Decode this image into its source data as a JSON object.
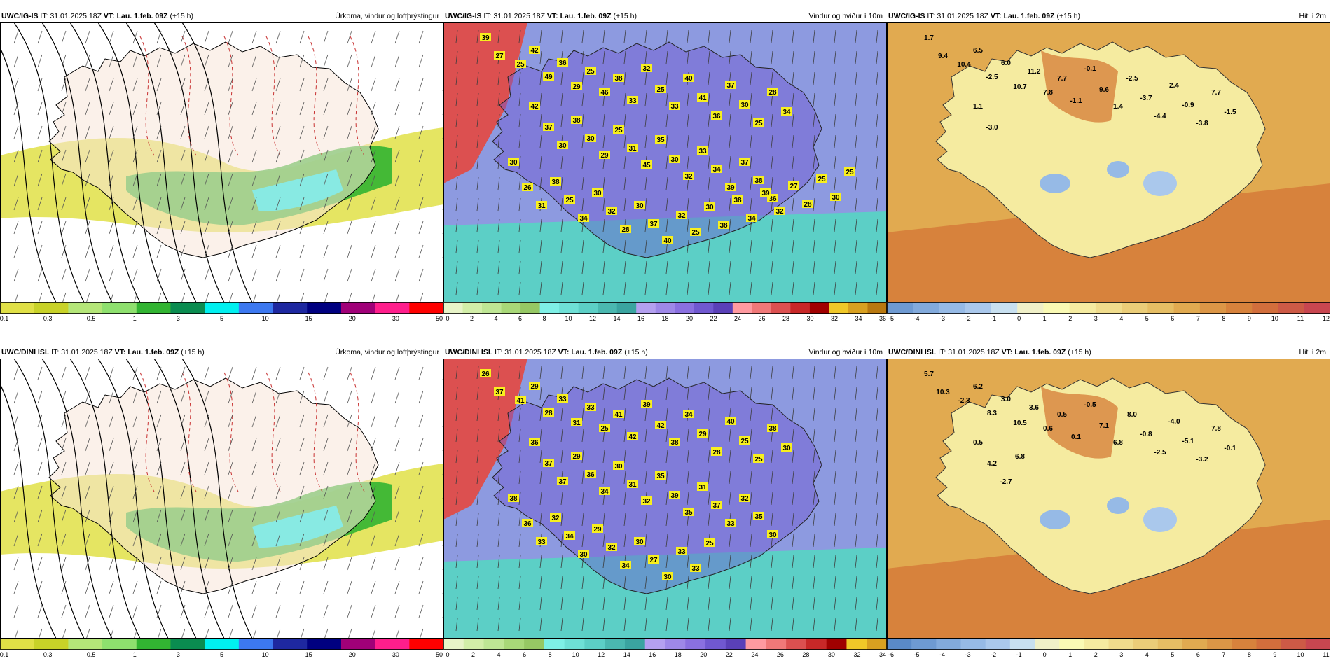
{
  "panels": [
    {
      "model": "UWC/IG-IS",
      "it_label": "IT:",
      "it_value": "31.01.2025 18Z",
      "vt_label": "VT:",
      "vt_value": "Lau. 1.feb. 09Z",
      "lead": "(+15 h)",
      "title": "Úrkoma, vindur og loftþrýstingur",
      "kind": "precip",
      "ticks": [
        "0.1",
        "0.3",
        "0.5",
        "1",
        "3",
        "5",
        "10",
        "15",
        "20",
        "30",
        "50"
      ],
      "scale_colors": [
        "#e0e046",
        "#c8d228",
        "#b4e678",
        "#8ee06e",
        "#32b432",
        "#0a8c50",
        "#00f0f0",
        "#3c78f0",
        "#1e28a0",
        "#000080",
        "#a00078",
        "#ff1e8c",
        "#ff0000"
      ],
      "values": []
    },
    {
      "model": "UWC/IG-IS",
      "it_label": "IT:",
      "it_value": "31.01.2025 18Z",
      "vt_label": "VT:",
      "vt_value": "Lau. 1.feb. 09Z",
      "lead": "(+15 h)",
      "title": "Vindur og hviður í 10m",
      "kind": "wind",
      "ticks": [
        "0",
        "2",
        "4",
        "6",
        "8",
        "10",
        "12",
        "14",
        "16",
        "18",
        "20",
        "22",
        "24",
        "26",
        "28",
        "30",
        "32",
        "34",
        "36"
      ],
      "scale_colors": [
        "#e8f4c8",
        "#d2eea8",
        "#bee694",
        "#a8d878",
        "#96c864",
        "#7ef0e6",
        "#6ee0d6",
        "#5ccfc6",
        "#4ab8b0",
        "#3aa4a0",
        "#b4a0f0",
        "#9e88e8",
        "#8a70e0",
        "#7058d0",
        "#5a40b8",
        "#ff9aa0",
        "#f07878",
        "#dc5050",
        "#c82828",
        "#a00000",
        "#f0c828",
        "#d8a020",
        "#b87810"
      ],
      "values": [
        "39",
        "27",
        "25",
        "42",
        "49",
        "36",
        "29",
        "25",
        "46",
        "38",
        "33",
        "32",
        "25",
        "33",
        "40",
        "41",
        "36",
        "37",
        "30",
        "25",
        "28",
        "34",
        "42",
        "37",
        "30",
        "38",
        "30",
        "29",
        "25",
        "31",
        "45",
        "35",
        "30",
        "32",
        "33",
        "34",
        "39",
        "37",
        "38",
        "36",
        "30",
        "26",
        "31",
        "38",
        "25",
        "34",
        "30",
        "32",
        "28",
        "30",
        "37",
        "40",
        "32",
        "25",
        "30",
        "38",
        "38",
        "34",
        "39",
        "32",
        "27",
        "28",
        "25",
        "30",
        "25"
      ]
    },
    {
      "model": "UWC/IG-IS",
      "it_label": "IT:",
      "it_value": "31.01.2025 18Z",
      "vt_label": "VT:",
      "vt_value": "Lau. 1.feb. 09Z",
      "lead": "(+15 h)",
      "title": "Hiti í 2m",
      "kind": "temp",
      "ticks": [
        "-5",
        "-4",
        "-3",
        "-2",
        "-1",
        "0",
        "1",
        "2",
        "3",
        "4",
        "5",
        "6",
        "7",
        "8",
        "9",
        "10",
        "11",
        "12"
      ],
      "scale_colors": [
        "#6e9ad2",
        "#82aadc",
        "#96bae6",
        "#aac8ec",
        "#c8e0f0",
        "#f0f0c8",
        "#fafab4",
        "#f5eba0",
        "#f0dc8c",
        "#ebcd78",
        "#e6be64",
        "#e1aa50",
        "#dc9646",
        "#d7823c",
        "#d26e3c",
        "#cd5a46",
        "#c84650"
      ],
      "values": [
        "1.7",
        "9.4",
        "10.4",
        "6.5",
        "-2.5",
        "6.0",
        "10.7",
        "11.2",
        "7.8",
        "7.7",
        "-1.1",
        "-0.1",
        "9.6",
        "1.4",
        "-2.5",
        "-3.7",
        "-4.4",
        "2.4",
        "-0.9",
        "-3.8",
        "7.7",
        "-1.5",
        "1.1",
        "-3.0"
      ]
    },
    {
      "model": "UWC/DINI ISL",
      "it_label": "IT:",
      "it_value": "31.01.2025 18Z",
      "vt_label": "VT:",
      "vt_value": "Lau. 1.feb. 09Z",
      "lead": "(+15 h)",
      "title": "Úrkoma, vindur og loftþrýstingur",
      "kind": "precip",
      "ticks": [
        "0.1",
        "0.3",
        "0.5",
        "1",
        "3",
        "5",
        "10",
        "15",
        "20",
        "30",
        "50"
      ],
      "scale_colors": [
        "#e0e046",
        "#c8d228",
        "#b4e678",
        "#8ee06e",
        "#32b432",
        "#0a8c50",
        "#00f0f0",
        "#3c78f0",
        "#1e28a0",
        "#000080",
        "#a00078",
        "#ff1e8c",
        "#ff0000"
      ],
      "values": []
    },
    {
      "model": "UWC/DINI ISL",
      "it_label": "IT:",
      "it_value": "31.01.2025 18Z",
      "vt_label": "VT:",
      "vt_value": "Lau. 1.feb. 09Z",
      "lead": "(+15 h)",
      "title": "Vindur og hviður í 10m",
      "kind": "wind",
      "ticks": [
        "0",
        "2",
        "4",
        "6",
        "8",
        "10",
        "12",
        "14",
        "16",
        "18",
        "20",
        "22",
        "24",
        "26",
        "28",
        "30",
        "32",
        "34"
      ],
      "scale_colors": [
        "#e8f4c8",
        "#d2eea8",
        "#bee694",
        "#a8d878",
        "#96c864",
        "#7ef0e6",
        "#6ee0d6",
        "#5ccfc6",
        "#4ab8b0",
        "#3aa4a0",
        "#b4a0f0",
        "#9e88e8",
        "#8a70e0",
        "#7058d0",
        "#5a40b8",
        "#ff9aa0",
        "#f07878",
        "#dc5050",
        "#c82828",
        "#a00000",
        "#f0c828",
        "#d8a020"
      ],
      "values": [
        "26",
        "37",
        "41",
        "29",
        "28",
        "33",
        "31",
        "33",
        "25",
        "41",
        "42",
        "39",
        "42",
        "38",
        "34",
        "29",
        "28",
        "40",
        "25",
        "25",
        "38",
        "30",
        "36",
        "37",
        "37",
        "29",
        "36",
        "34",
        "30",
        "31",
        "32",
        "35",
        "39",
        "35",
        "31",
        "37",
        "33",
        "32",
        "35",
        "30",
        "38",
        "36",
        "33",
        "32",
        "34",
        "30",
        "29",
        "32",
        "34",
        "30",
        "27",
        "30",
        "33",
        "33",
        "25"
      ]
    },
    {
      "model": "UWC/DINI ISL",
      "it_label": "IT:",
      "it_value": "31.01.2025 18Z",
      "vt_label": "VT:",
      "vt_value": "Lau. 1.feb. 09Z",
      "lead": "(+15 h)",
      "title": "Hiti í 2m",
      "kind": "temp",
      "ticks": [
        "-6",
        "-5",
        "-4",
        "-3",
        "-2",
        "-1",
        "0",
        "1",
        "2",
        "3",
        "4",
        "5",
        "6",
        "7",
        "8",
        "9",
        "10",
        "11"
      ],
      "scale_colors": [
        "#5a8ac8",
        "#6e9ad2",
        "#82aadc",
        "#96bae6",
        "#aac8ec",
        "#c8e0f0",
        "#f0f0c8",
        "#fafab4",
        "#f5eba0",
        "#f0dc8c",
        "#ebcd78",
        "#e6be64",
        "#e1aa50",
        "#dc9646",
        "#d7823c",
        "#d26e3c",
        "#cd5a46",
        "#c84650"
      ],
      "values": [
        "5.7",
        "10.3",
        "-2.3",
        "6.2",
        "8.3",
        "3.0",
        "10.5",
        "3.6",
        "0.6",
        "0.5",
        "0.1",
        "-0.5",
        "7.1",
        "6.8",
        "8.0",
        "-0.8",
        "-2.5",
        "-4.0",
        "-5.1",
        "-3.2",
        "7.8",
        "-0.1",
        "0.5",
        "4.2",
        "-2.7",
        "6.8"
      ]
    }
  ]
}
